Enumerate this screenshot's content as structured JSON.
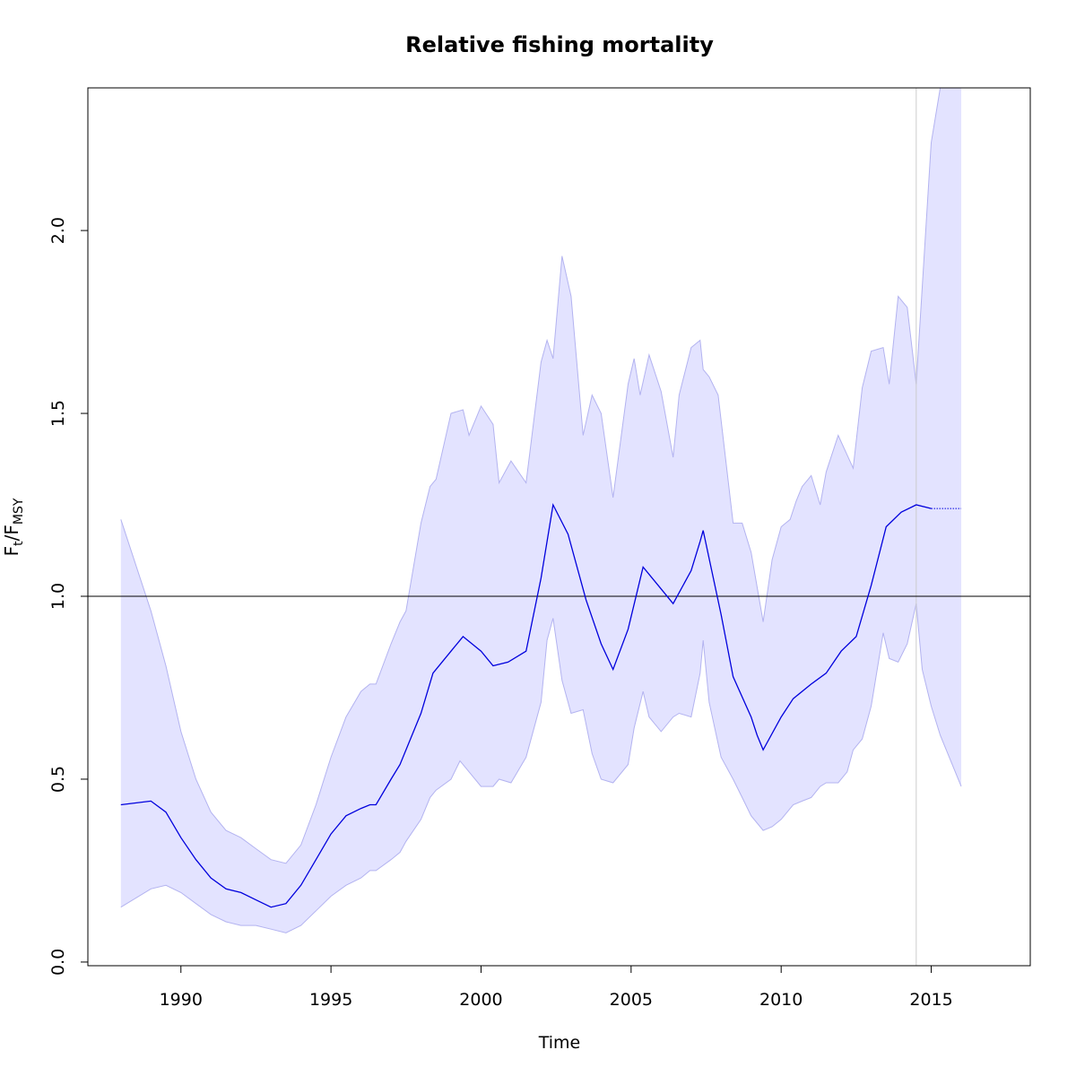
{
  "chart_data": {
    "type": "line",
    "title": "Relative fishing mortality",
    "xlabel": "Time",
    "ylabel": {
      "main": "F",
      "sub_t": "t",
      "sep": "/F",
      "sub_msy": "MSY"
    },
    "xlim": [
      1986.9,
      2018.3
    ],
    "ylim": [
      -0.01,
      2.39
    ],
    "x_ticks": [
      1990,
      1995,
      2000,
      2005,
      2010,
      2015
    ],
    "y_ticks": [
      0.0,
      0.5,
      1.0,
      1.5,
      2.0
    ],
    "y_tick_labels": [
      "0.0",
      "0.5",
      "1.0",
      "1.5",
      "2.0"
    ],
    "reference_hline": 1.0,
    "reference_vline": 2014.5,
    "grid": false,
    "colors": {
      "line": "#0000dd",
      "band_fill": "#e3e3ff",
      "band_edge": "#b3b3f0",
      "vline": "#cccccc",
      "axis": "#000000"
    },
    "series": [
      {
        "role": "estimate",
        "x": [
          1988.0,
          1989.0,
          1989.5,
          1990.0,
          1990.5,
          1991.0,
          1991.5,
          1992.0,
          1992.5,
          1993.0,
          1993.5,
          1994.0,
          1994.5,
          1995.0,
          1995.5,
          1996.0,
          1996.3,
          1996.5,
          1997.0,
          1997.3,
          1998.0,
          1998.4,
          1999.0,
          1999.4,
          2000.0,
          2000.4,
          2000.9,
          2001.5,
          2002.0,
          2002.4,
          2002.9,
          2003.5,
          2004.0,
          2004.4,
          2004.9,
          2005.4,
          2006.0,
          2006.4,
          2007.0,
          2007.3,
          2007.4,
          2008.0,
          2008.4,
          2009.0,
          2009.2,
          2009.4,
          2010.0,
          2010.4,
          2011.0,
          2011.5,
          2012.0,
          2012.5,
          2013.0,
          2013.5,
          2014.0,
          2014.5,
          2015.0
        ],
        "y": [
          0.43,
          0.44,
          0.41,
          0.34,
          0.28,
          0.23,
          0.2,
          0.19,
          0.17,
          0.15,
          0.16,
          0.21,
          0.28,
          0.35,
          0.4,
          0.42,
          0.43,
          0.43,
          0.5,
          0.54,
          0.68,
          0.79,
          0.85,
          0.89,
          0.85,
          0.81,
          0.82,
          0.85,
          1.05,
          1.25,
          1.17,
          0.99,
          0.87,
          0.8,
          0.91,
          1.08,
          1.02,
          0.98,
          1.07,
          1.15,
          1.18,
          0.95,
          0.78,
          0.67,
          0.62,
          0.58,
          0.67,
          0.72,
          0.76,
          0.79,
          0.85,
          0.89,
          1.03,
          1.19,
          1.23,
          1.25,
          1.24
        ]
      },
      {
        "role": "estimate-projection",
        "x": [
          2015.0,
          2016.0
        ],
        "y": [
          1.24,
          1.24
        ]
      },
      {
        "role": "upper-bound",
        "x": [
          1988.0,
          1989.0,
          1989.5,
          1990.0,
          1990.5,
          1991.0,
          1991.5,
          1992.0,
          1992.5,
          1993.0,
          1993.5,
          1994.0,
          1994.5,
          1995.0,
          1995.5,
          1996.0,
          1996.3,
          1996.5,
          1997.0,
          1997.3,
          1997.5,
          1998.0,
          1998.3,
          1998.5,
          1999.0,
          1999.4,
          1999.6,
          2000.0,
          2000.4,
          2000.6,
          2001.0,
          2001.5,
          2002.0,
          2002.2,
          2002.4,
          2002.7,
          2003.0,
          2003.4,
          2003.7,
          2004.0,
          2004.4,
          2004.9,
          2005.1,
          2005.3,
          2005.6,
          2006.0,
          2006.4,
          2006.6,
          2007.0,
          2007.3,
          2007.4,
          2007.6,
          2007.9,
          2008.4,
          2008.7,
          2009.0,
          2009.4,
          2009.7,
          2010.0,
          2010.3,
          2010.5,
          2010.7,
          2011.0,
          2011.3,
          2011.5,
          2011.9,
          2012.4,
          2012.7,
          2013.0,
          2013.4,
          2013.6,
          2013.9,
          2014.2,
          2014.5,
          2015.0,
          2015.3,
          2016.0
        ],
        "y": [
          1.21,
          0.96,
          0.81,
          0.63,
          0.5,
          0.41,
          0.36,
          0.34,
          0.31,
          0.28,
          0.27,
          0.32,
          0.43,
          0.56,
          0.67,
          0.74,
          0.76,
          0.76,
          0.87,
          0.93,
          0.96,
          1.2,
          1.3,
          1.32,
          1.5,
          1.51,
          1.44,
          1.52,
          1.47,
          1.31,
          1.37,
          1.31,
          1.64,
          1.7,
          1.65,
          1.93,
          1.82,
          1.44,
          1.55,
          1.5,
          1.27,
          1.58,
          1.65,
          1.55,
          1.66,
          1.56,
          1.38,
          1.55,
          1.68,
          1.7,
          1.62,
          1.6,
          1.55,
          1.2,
          1.2,
          1.12,
          0.93,
          1.1,
          1.19,
          1.21,
          1.26,
          1.3,
          1.33,
          1.25,
          1.34,
          1.44,
          1.35,
          1.57,
          1.67,
          1.68,
          1.58,
          1.82,
          1.79,
          1.58,
          2.24,
          2.39,
          2.39
        ]
      },
      {
        "role": "lower-bound",
        "x": [
          1988.0,
          1989.0,
          1989.5,
          1990.0,
          1990.5,
          1991.0,
          1991.5,
          1992.0,
          1992.5,
          1993.0,
          1993.5,
          1994.0,
          1994.5,
          1995.0,
          1995.5,
          1996.0,
          1996.3,
          1996.5,
          1997.0,
          1997.3,
          1997.5,
          1998.0,
          1998.3,
          1998.5,
          1999.0,
          1999.3,
          1999.6,
          2000.0,
          2000.4,
          2000.6,
          2001.0,
          2001.5,
          2002.0,
          2002.2,
          2002.4,
          2002.7,
          2003.0,
          2003.4,
          2003.7,
          2004.0,
          2004.4,
          2004.9,
          2005.1,
          2005.4,
          2005.6,
          2006.0,
          2006.4,
          2006.6,
          2007.0,
          2007.3,
          2007.4,
          2007.6,
          2008.0,
          2008.4,
          2008.7,
          2009.0,
          2009.4,
          2009.7,
          2010.0,
          2010.4,
          2010.7,
          2011.0,
          2011.3,
          2011.5,
          2011.9,
          2012.2,
          2012.4,
          2012.7,
          2013.0,
          2013.4,
          2013.6,
          2013.9,
          2014.2,
          2014.5,
          2014.7,
          2015.0,
          2015.3,
          2016.0
        ],
        "y": [
          0.15,
          0.2,
          0.21,
          0.19,
          0.16,
          0.13,
          0.11,
          0.1,
          0.1,
          0.09,
          0.08,
          0.1,
          0.14,
          0.18,
          0.21,
          0.23,
          0.25,
          0.25,
          0.28,
          0.3,
          0.33,
          0.39,
          0.45,
          0.47,
          0.5,
          0.55,
          0.52,
          0.48,
          0.48,
          0.5,
          0.49,
          0.56,
          0.71,
          0.88,
          0.94,
          0.77,
          0.68,
          0.69,
          0.57,
          0.5,
          0.49,
          0.54,
          0.64,
          0.74,
          0.67,
          0.63,
          0.67,
          0.68,
          0.67,
          0.79,
          0.88,
          0.71,
          0.56,
          0.5,
          0.45,
          0.4,
          0.36,
          0.37,
          0.39,
          0.43,
          0.44,
          0.45,
          0.48,
          0.49,
          0.49,
          0.52,
          0.58,
          0.61,
          0.7,
          0.9,
          0.83,
          0.82,
          0.87,
          0.98,
          0.8,
          0.7,
          0.62,
          0.48
        ]
      }
    ]
  }
}
